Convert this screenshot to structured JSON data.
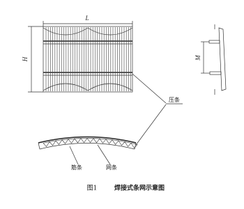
{
  "labels": {
    "length": "L",
    "height": "H",
    "spacing": "M",
    "press_strip": "压条",
    "rib_strip": "筋条",
    "mesh_strip": "网条"
  },
  "caption": {
    "number": "图1",
    "title": "焊接式条网示意图"
  }
}
